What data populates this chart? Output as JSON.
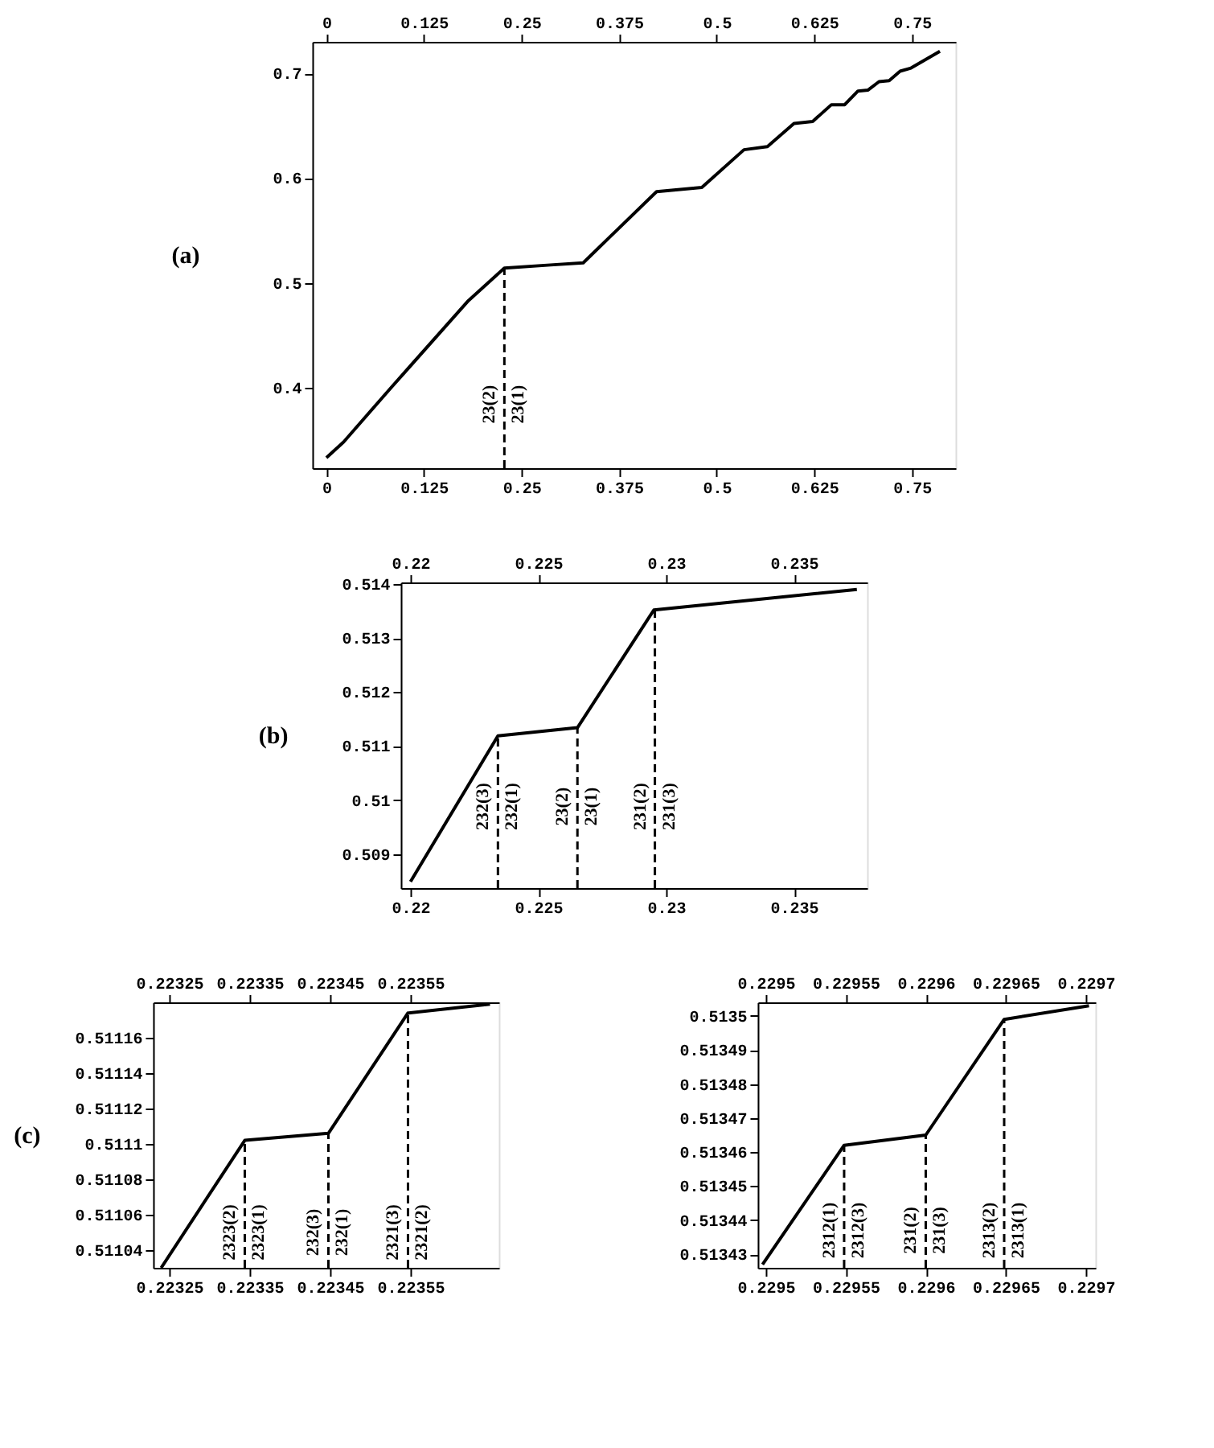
{
  "chart_data": [
    {
      "type": "line",
      "title": "(a)",
      "xlim": [
        -0.018,
        0.806
      ],
      "xticks": [
        0,
        0.125,
        0.25,
        0.375,
        0.5,
        0.625,
        0.75
      ],
      "x2lim": [
        -0.018,
        0.806
      ],
      "x2ticks": [
        0,
        0.125,
        0.25,
        0.375,
        0.5,
        0.625,
        0.75
      ],
      "ylim": [
        0.323,
        0.73
      ],
      "yticks": [
        0.4,
        0.5,
        0.6,
        0.7
      ],
      "grid": false,
      "series": [
        {
          "color": "#000000",
          "line_style": "solid",
          "x": [
            0,
            0.022,
            0.083,
            0.182,
            0.228,
            0.287,
            0.329,
            0.423,
            0.481,
            0.535,
            0.565,
            0.599,
            0.623,
            0.647,
            0.664,
            0.681,
            0.694,
            0.708,
            0.721,
            0.735,
            0.749,
            0.786
          ],
          "values": [
            0.333,
            0.348,
            0.4,
            0.483,
            0.514,
            0.517,
            0.519,
            0.587,
            0.591,
            0.627,
            0.63,
            0.652,
            0.654,
            0.67,
            0.67,
            0.683,
            0.684,
            0.692,
            0.693,
            0.702,
            0.705,
            0.721
          ]
        },
        {
          "color": "#000000",
          "line_style": "dashed",
          "x": [
            0.228,
            0.228
          ],
          "values": [
            0.323,
            0.514
          ]
        }
      ],
      "annotations": [
        {
          "text": "23(2)",
          "x": 0.228,
          "y": 0.384
        },
        {
          "text": "23(1)",
          "x": 0.228,
          "y": 0.384
        }
      ]
    },
    {
      "type": "line",
      "title": "(b)",
      "xlim": [
        0.21962,
        0.23786
      ],
      "xticks": [
        0.22,
        0.225,
        0.23,
        0.235
      ],
      "x2lim": [
        0.21962,
        0.23786
      ],
      "x2ticks": [
        0.22,
        0.225,
        0.23,
        0.235
      ],
      "ylim": [
        0.50837,
        0.51403
      ],
      "yticks": [
        0.509,
        0.51,
        0.511,
        0.512,
        0.513,
        0.514
      ],
      "grid": false,
      "series": [
        {
          "color": "#000000",
          "line_style": "solid",
          "x": [
            0.22,
            0.22342,
            0.22653,
            0.22952,
            0.23746
          ],
          "values": [
            0.50849,
            0.51119,
            0.51134,
            0.51352,
            0.5139
          ]
        },
        {
          "color": "#000000",
          "line_style": "dashed",
          "x": [
            0.22342,
            0.22342
          ],
          "values": [
            0.50837,
            0.51119
          ]
        },
        {
          "color": "#000000",
          "line_style": "dashed",
          "x": [
            0.22653,
            0.22653
          ],
          "values": [
            0.50837,
            0.51134
          ]
        },
        {
          "color": "#000000",
          "line_style": "dashed",
          "x": [
            0.22956,
            0.22956
          ],
          "values": [
            0.50837,
            0.51352
          ]
        }
      ],
      "annotations": [
        {
          "text": "232(3)",
          "x": 0.22342,
          "y": 0.50988
        },
        {
          "text": "232(1)",
          "x": 0.22342,
          "y": 0.50988
        },
        {
          "text": "23(2)",
          "x": 0.22653,
          "y": 0.50988
        },
        {
          "text": "23(1)",
          "x": 0.22653,
          "y": 0.50988
        },
        {
          "text": "231(2)",
          "x": 0.22956,
          "y": 0.50988
        },
        {
          "text": "231(3)",
          "x": 0.22956,
          "y": 0.50988
        }
      ]
    },
    {
      "type": "line",
      "title": "(c)",
      "xlim": [
        0.22323,
        0.22366
      ],
      "xticks": [
        0.22325,
        0.22335,
        0.22345,
        0.22355
      ],
      "x2lim": [
        0.22323,
        0.22366
      ],
      "x2ticks": [
        0.22325,
        0.22335,
        0.22345,
        0.22355
      ],
      "ylim": [
        0.51103,
        0.51118
      ],
      "yticks": [
        0.51104,
        0.51106,
        0.51108,
        0.5111,
        0.51112,
        0.51114,
        0.51116
      ],
      "grid": false,
      "series": [
        {
          "color": "#000000",
          "line_style": "solid",
          "x": [
            0.22324,
            0.223344,
            0.223448,
            0.223547,
            0.223649
          ],
          "values": [
            0.51103,
            0.511102,
            0.511106,
            0.511174,
            0.511179
          ]
        },
        {
          "color": "#000000",
          "line_style": "dashed",
          "x": [
            0.223344,
            0.223344
          ],
          "values": [
            0.51103,
            0.511102
          ]
        },
        {
          "color": "#000000",
          "line_style": "dashed",
          "x": [
            0.223448,
            0.223448
          ],
          "values": [
            0.51103,
            0.511106
          ]
        },
        {
          "color": "#000000",
          "line_style": "dashed",
          "x": [
            0.223547,
            0.223547
          ],
          "values": [
            0.51103,
            0.511174
          ]
        }
      ],
      "annotations": [
        {
          "text": "2323(2)",
          "x": 0.223344,
          "y": 0.51105
        },
        {
          "text": "2323(1)",
          "x": 0.223344,
          "y": 0.51105
        },
        {
          "text": "232(3)",
          "x": 0.223448,
          "y": 0.51105
        },
        {
          "text": "232(1)",
          "x": 0.223448,
          "y": 0.51105
        },
        {
          "text": "2321(3)",
          "x": 0.223547,
          "y": 0.51105
        },
        {
          "text": "2321(2)",
          "x": 0.223547,
          "y": 0.51105
        }
      ]
    },
    {
      "type": "line",
      "xlim": [
        0.229495,
        0.229706
      ],
      "xticks": [
        0.2295,
        0.22955,
        0.2296,
        0.22965,
        0.2297
      ],
      "x2lim": [
        0.229495,
        0.229706
      ],
      "x2ticks": [
        0.2295,
        0.22955,
        0.2296,
        0.22965,
        0.2297
      ],
      "ylim": [
        0.513426,
        0.513504
      ],
      "yticks": [
        0.51343,
        0.51344,
        0.51345,
        0.51346,
        0.51347,
        0.51348,
        0.51349,
        0.5135
      ],
      "grid": false,
      "series": [
        {
          "color": "#000000",
          "line_style": "solid",
          "x": [
            0.229498,
            0.229549,
            0.2296,
            0.229649,
            0.229702
          ],
          "values": [
            0.513427,
            0.513462,
            0.513465,
            0.513499,
            0.513503
          ]
        },
        {
          "color": "#000000",
          "line_style": "dashed",
          "x": [
            0.229549,
            0.229549
          ],
          "values": [
            0.513426,
            0.513462
          ]
        },
        {
          "color": "#000000",
          "line_style": "dashed",
          "x": [
            0.2296,
            0.2296
          ],
          "values": [
            0.513426,
            0.513465
          ]
        },
        {
          "color": "#000000",
          "line_style": "dashed",
          "x": [
            0.229649,
            0.229649
          ],
          "values": [
            0.513426,
            0.513499
          ]
        }
      ],
      "annotations": [
        {
          "text": "2312(1)",
          "x": 0.229549,
          "y": 0.513437
        },
        {
          "text": "2312(3)",
          "x": 0.229549,
          "y": 0.513437
        },
        {
          "text": "231(2)",
          "x": 0.2296,
          "y": 0.513437
        },
        {
          "text": "231(3)",
          "x": 0.2296,
          "y": 0.513437
        },
        {
          "text": "2313(2)",
          "x": 0.229649,
          "y": 0.513437
        },
        {
          "text": "2313(1)",
          "x": 0.229649,
          "y": 0.513437
        }
      ]
    }
  ]
}
